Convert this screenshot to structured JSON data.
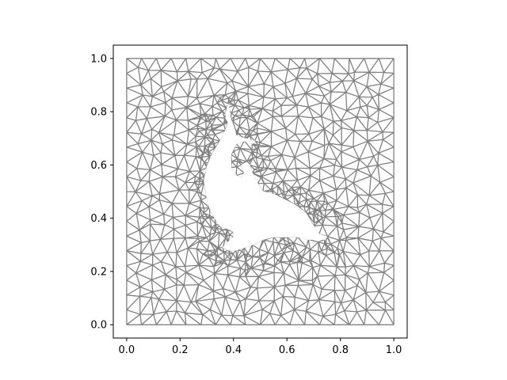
{
  "chart_data": {
    "type": "triangular-mesh",
    "title": "",
    "xlabel": "",
    "ylabel": "",
    "xlim": [
      -0.05,
      1.05
    ],
    "ylim": [
      -0.05,
      1.05
    ],
    "aspect": "equal",
    "grid": false,
    "legend": "none",
    "x_ticks": [
      0.0,
      0.2,
      0.4,
      0.6,
      0.8,
      1.0
    ],
    "x_tick_labels": [
      "0.0",
      "0.2",
      "0.4",
      "0.6",
      "0.8",
      "1.0"
    ],
    "y_ticks": [
      0.0,
      0.2,
      0.4,
      0.6,
      0.8,
      1.0
    ],
    "y_tick_labels": [
      "0.0",
      "0.2",
      "0.4",
      "0.6",
      "0.8",
      "1.0"
    ],
    "mesh": {
      "domain": [
        0,
        1,
        0,
        1
      ],
      "color": "#808080",
      "hole_fill": "#ffffff",
      "hole_outline": [
        [
          0.38,
          0.76
        ],
        [
          0.37,
          0.79
        ],
        [
          0.38,
          0.83
        ],
        [
          0.39,
          0.77
        ],
        [
          0.41,
          0.71
        ],
        [
          0.44,
          0.7
        ],
        [
          0.48,
          0.69
        ],
        [
          0.47,
          0.68
        ],
        [
          0.44,
          0.69
        ],
        [
          0.41,
          0.68
        ],
        [
          0.39,
          0.64
        ],
        [
          0.39,
          0.59
        ],
        [
          0.41,
          0.56
        ],
        [
          0.43,
          0.55
        ],
        [
          0.44,
          0.57
        ],
        [
          0.43,
          0.6
        ],
        [
          0.45,
          0.61
        ],
        [
          0.46,
          0.6
        ],
        [
          0.47,
          0.57
        ],
        [
          0.49,
          0.53
        ],
        [
          0.51,
          0.5
        ],
        [
          0.55,
          0.49
        ],
        [
          0.59,
          0.47
        ],
        [
          0.63,
          0.45
        ],
        [
          0.67,
          0.42
        ],
        [
          0.7,
          0.37
        ],
        [
          0.72,
          0.34
        ],
        [
          0.75,
          0.33
        ],
        [
          0.74,
          0.32
        ],
        [
          0.68,
          0.32
        ],
        [
          0.64,
          0.33
        ],
        [
          0.6,
          0.33
        ],
        [
          0.55,
          0.33
        ],
        [
          0.51,
          0.32
        ],
        [
          0.47,
          0.3
        ],
        [
          0.44,
          0.29
        ],
        [
          0.41,
          0.28
        ],
        [
          0.38,
          0.28
        ],
        [
          0.36,
          0.29
        ],
        [
          0.38,
          0.31
        ],
        [
          0.4,
          0.33
        ],
        [
          0.4,
          0.35
        ],
        [
          0.38,
          0.36
        ],
        [
          0.35,
          0.37
        ],
        [
          0.33,
          0.4
        ],
        [
          0.31,
          0.44
        ],
        [
          0.3,
          0.48
        ],
        [
          0.29,
          0.54
        ],
        [
          0.3,
          0.59
        ],
        [
          0.32,
          0.64
        ],
        [
          0.35,
          0.69
        ],
        [
          0.37,
          0.73
        ]
      ],
      "refine_ring": [
        [
          0.33,
          0.86
        ],
        [
          0.27,
          0.8
        ],
        [
          0.25,
          0.7
        ],
        [
          0.25,
          0.55
        ],
        [
          0.26,
          0.4
        ],
        [
          0.27,
          0.28
        ],
        [
          0.34,
          0.21
        ],
        [
          0.5,
          0.2
        ],
        [
          0.65,
          0.23
        ],
        [
          0.8,
          0.26
        ],
        [
          0.83,
          0.33
        ],
        [
          0.8,
          0.42
        ],
        [
          0.7,
          0.5
        ],
        [
          0.58,
          0.55
        ],
        [
          0.52,
          0.65
        ],
        [
          0.5,
          0.76
        ],
        [
          0.45,
          0.84
        ]
      ]
    }
  }
}
